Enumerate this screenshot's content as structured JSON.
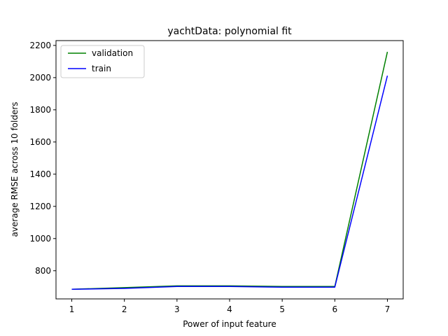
{
  "chart_data": {
    "type": "line",
    "title": "yachtData: polynomial fit",
    "xlabel": "Power of input feature",
    "ylabel": "average RMSE across 10 folders",
    "x": [
      1,
      2,
      3,
      4,
      5,
      6,
      7
    ],
    "xlim": [
      0.7,
      7.3
    ],
    "ylim": [
      625,
      2230
    ],
    "xticks": [
      1,
      2,
      3,
      4,
      5,
      6,
      7
    ],
    "yticks": [
      800,
      1000,
      1200,
      1400,
      1600,
      1800,
      2000,
      2200
    ],
    "legend_position": "top-left",
    "grid": false,
    "series": [
      {
        "name": "validation",
        "color": "#008000",
        "values": [
          685,
          695,
          706,
          706,
          702,
          702,
          2160
        ]
      },
      {
        "name": "train",
        "color": "#0000ff",
        "values": [
          685,
          690,
          702,
          702,
          698,
          698,
          2012
        ]
      }
    ]
  }
}
